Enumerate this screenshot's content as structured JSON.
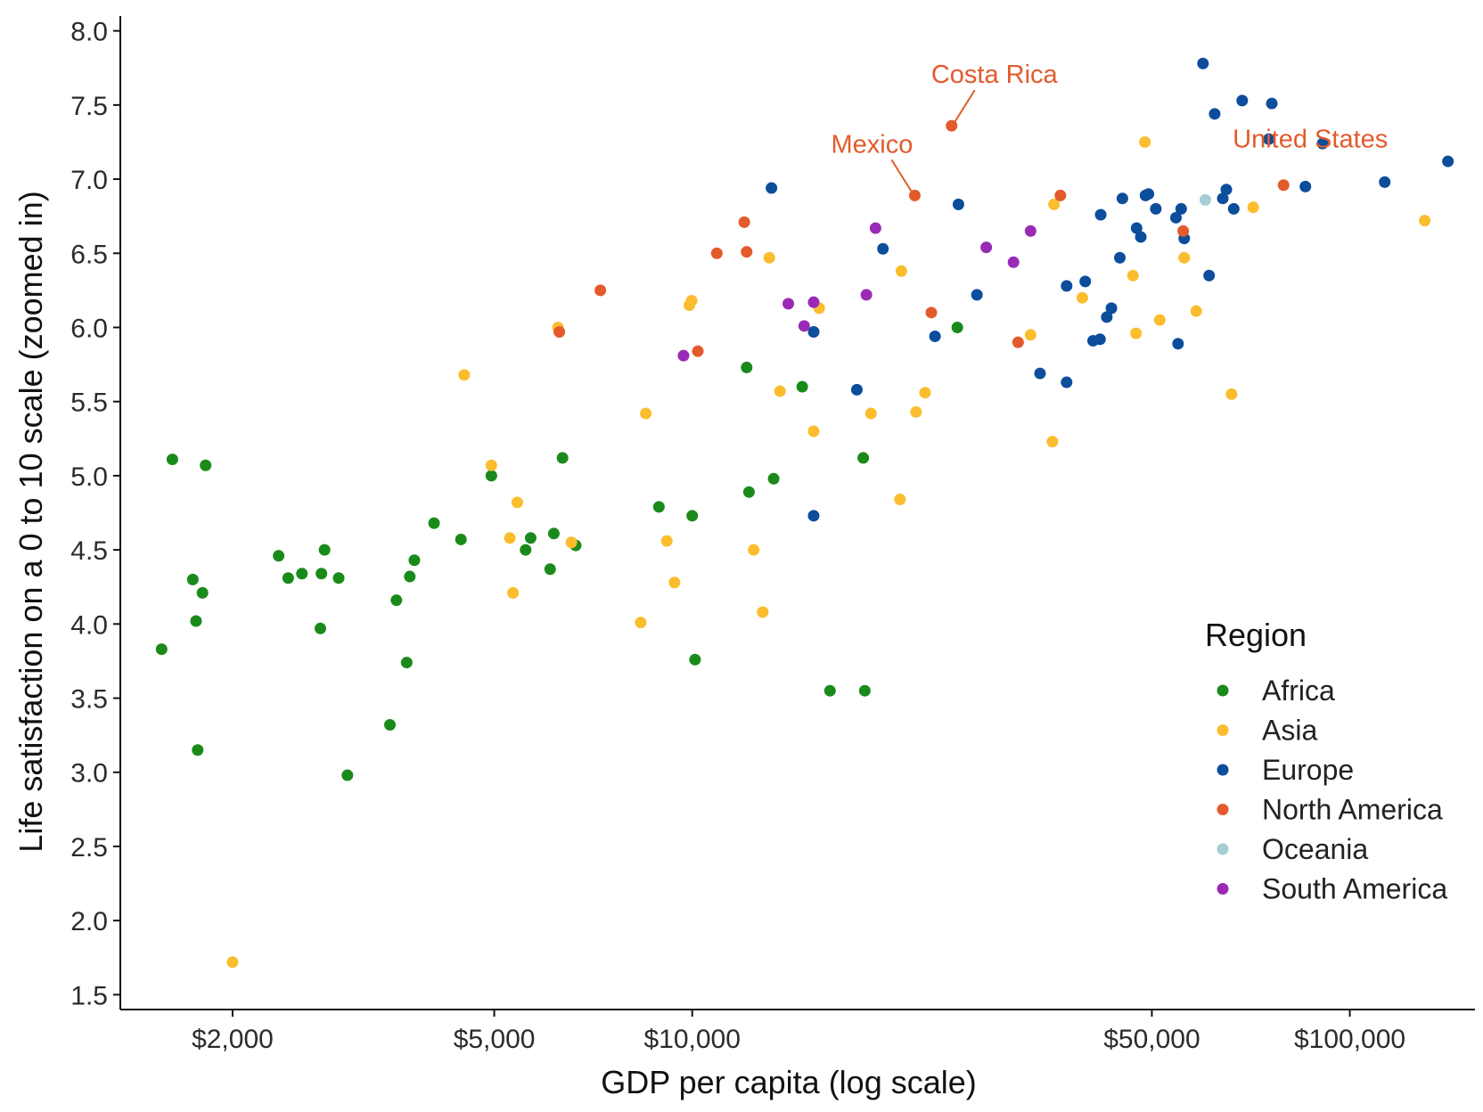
{
  "chart_data": {
    "type": "scatter",
    "title": "",
    "xlabel": "GDP per capita (log scale)",
    "ylabel": "Life satisfaction on a 0 to 10 scale (zoomed in)",
    "x_scale": "log",
    "xlim": [
      1350,
      155000
    ],
    "ylim": [
      1.4,
      8.1
    ],
    "x_ticks": [
      {
        "value": 2000,
        "label": "$2,000"
      },
      {
        "value": 5000,
        "label": "$5,000"
      },
      {
        "value": 10000,
        "label": "$10,000"
      },
      {
        "value": 50000,
        "label": "$50,000"
      },
      {
        "value": 100000,
        "label": "$100,000"
      }
    ],
    "y_ticks": [
      {
        "value": 1.5,
        "label": "1.5"
      },
      {
        "value": 2.0,
        "label": "2.0"
      },
      {
        "value": 2.5,
        "label": "2.5"
      },
      {
        "value": 3.0,
        "label": "3.0"
      },
      {
        "value": 3.5,
        "label": "3.5"
      },
      {
        "value": 4.0,
        "label": "4.0"
      },
      {
        "value": 4.5,
        "label": "4.5"
      },
      {
        "value": 5.0,
        "label": "5.0"
      },
      {
        "value": 5.5,
        "label": "5.5"
      },
      {
        "value": 6.0,
        "label": "6.0"
      },
      {
        "value": 6.5,
        "label": "6.5"
      },
      {
        "value": 7.0,
        "label": "7.0"
      },
      {
        "value": 7.5,
        "label": "7.5"
      },
      {
        "value": 8.0,
        "label": "8.0"
      }
    ],
    "grid": false,
    "legend": {
      "title": "Region",
      "position": "bottom-right"
    },
    "series": [
      {
        "name": "Africa",
        "color": "#1a8a1a",
        "points": [
          [
            1560,
            3.83
          ],
          [
            1620,
            5.11
          ],
          [
            1740,
            4.3
          ],
          [
            1760,
            4.02
          ],
          [
            1770,
            3.15
          ],
          [
            1800,
            4.21
          ],
          [
            1820,
            5.07
          ],
          [
            2350,
            4.46
          ],
          [
            2430,
            4.31
          ],
          [
            2550,
            4.34
          ],
          [
            2730,
            4.34
          ],
          [
            2720,
            3.97
          ],
          [
            2760,
            4.5
          ],
          [
            2900,
            4.31
          ],
          [
            2990,
            2.98
          ],
          [
            3470,
            3.32
          ],
          [
            3550,
            4.16
          ],
          [
            3680,
            3.74
          ],
          [
            3720,
            4.32
          ],
          [
            3780,
            4.43
          ],
          [
            4050,
            4.68
          ],
          [
            4450,
            4.57
          ],
          [
            4950,
            5.0
          ],
          [
            5580,
            4.5
          ],
          [
            5680,
            4.58
          ],
          [
            6080,
            4.37
          ],
          [
            6160,
            4.61
          ],
          [
            6350,
            5.12
          ],
          [
            6650,
            4.53
          ],
          [
            8900,
            4.79
          ],
          [
            10000,
            4.73
          ],
          [
            10100,
            3.76
          ],
          [
            12100,
            5.73
          ],
          [
            12200,
            4.89
          ],
          [
            13300,
            4.98
          ],
          [
            14700,
            5.6
          ],
          [
            16200,
            3.55
          ],
          [
            18300,
            3.55
          ],
          [
            18200,
            5.12
          ],
          [
            25300,
            6.0
          ]
        ]
      },
      {
        "name": "Asia",
        "color": "#fbbd2e",
        "points": [
          [
            2000,
            1.72
          ],
          [
            4500,
            5.68
          ],
          [
            4950,
            5.07
          ],
          [
            5280,
            4.58
          ],
          [
            5340,
            4.21
          ],
          [
            5420,
            4.82
          ],
          [
            6250,
            6.0
          ],
          [
            6550,
            4.55
          ],
          [
            8350,
            4.01
          ],
          [
            8500,
            5.42
          ],
          [
            9150,
            4.56
          ],
          [
            9400,
            4.28
          ],
          [
            9900,
            6.15
          ],
          [
            9980,
            6.18
          ],
          [
            12400,
            4.5
          ],
          [
            12800,
            4.08
          ],
          [
            13100,
            6.47
          ],
          [
            13600,
            5.57
          ],
          [
            15300,
            5.3
          ],
          [
            15600,
            6.13
          ],
          [
            18700,
            5.42
          ],
          [
            20700,
            4.84
          ],
          [
            20800,
            6.38
          ],
          [
            21900,
            5.43
          ],
          [
            22600,
            5.56
          ],
          [
            32700,
            5.95
          ],
          [
            35300,
            5.23
          ],
          [
            35500,
            6.83
          ],
          [
            39200,
            6.2
          ],
          [
            46800,
            6.35
          ],
          [
            47300,
            5.96
          ],
          [
            48800,
            7.25
          ],
          [
            51400,
            6.05
          ],
          [
            56000,
            6.47
          ],
          [
            58400,
            6.11
          ],
          [
            66100,
            5.55
          ],
          [
            71300,
            6.81
          ],
          [
            130000,
            6.72
          ]
        ]
      },
      {
        "name": "Europe",
        "color": "#0c4d9c",
        "points": [
          [
            13200,
            6.94
          ],
          [
            15300,
            5.97
          ],
          [
            15300,
            4.73
          ],
          [
            17800,
            5.58
          ],
          [
            19500,
            6.53
          ],
          [
            23400,
            5.94
          ],
          [
            25400,
            6.83
          ],
          [
            27100,
            6.22
          ],
          [
            33800,
            5.69
          ],
          [
            37100,
            6.28
          ],
          [
            37100,
            5.63
          ],
          [
            39600,
            6.31
          ],
          [
            40700,
            5.91
          ],
          [
            41700,
            5.92
          ],
          [
            41800,
            6.76
          ],
          [
            42700,
            6.07
          ],
          [
            43400,
            6.13
          ],
          [
            44700,
            6.47
          ],
          [
            45100,
            6.87
          ],
          [
            47400,
            6.67
          ],
          [
            48100,
            6.61
          ],
          [
            48900,
            6.89
          ],
          [
            49400,
            6.9
          ],
          [
            50700,
            6.8
          ],
          [
            54400,
            6.74
          ],
          [
            55400,
            6.8
          ],
          [
            56000,
            6.6
          ],
          [
            54800,
            5.89
          ],
          [
            61100,
            6.35
          ],
          [
            62300,
            7.44
          ],
          [
            64100,
            6.87
          ],
          [
            64900,
            6.93
          ],
          [
            66600,
            6.8
          ],
          [
            68600,
            7.53
          ],
          [
            75300,
            7.27
          ],
          [
            76100,
            7.51
          ],
          [
            59800,
            7.78
          ],
          [
            85600,
            6.95
          ],
          [
            90900,
            7.24
          ],
          [
            113000,
            6.98
          ],
          [
            141000,
            7.12
          ]
        ]
      },
      {
        "name": "North America",
        "color": "#e35a2b",
        "points": [
          [
            6280,
            5.97
          ],
          [
            7250,
            6.25
          ],
          [
            10200,
            5.84
          ],
          [
            10900,
            6.5
          ],
          [
            12000,
            6.71
          ],
          [
            12100,
            6.51
          ],
          [
            21800,
            6.89
          ],
          [
            23100,
            6.1
          ],
          [
            24800,
            7.36
          ],
          [
            31300,
            5.9
          ],
          [
            36300,
            6.89
          ],
          [
            55800,
            6.65
          ],
          [
            79300,
            6.96
          ]
        ]
      },
      {
        "name": "Oceania",
        "color": "#a5cdd5",
        "points": [
          [
            60300,
            6.86
          ]
        ]
      },
      {
        "name": "South America",
        "color": "#9a2ab5",
        "points": [
          [
            9700,
            5.81
          ],
          [
            14000,
            6.16
          ],
          [
            14800,
            6.01
          ],
          [
            15300,
            6.17
          ],
          [
            18400,
            6.22
          ],
          [
            19000,
            6.67
          ],
          [
            28000,
            6.54
          ],
          [
            30800,
            6.44
          ],
          [
            32700,
            6.65
          ]
        ]
      }
    ],
    "annotations": [
      {
        "label": "Costa Rica",
        "x": 24800,
        "y": 7.36,
        "color": "#e35a2b"
      },
      {
        "label": "Mexico",
        "x": 21800,
        "y": 6.89,
        "color": "#e35a2b"
      },
      {
        "label": "United States",
        "x": 79300,
        "y": 6.96,
        "color": "#e35a2b"
      }
    ]
  }
}
